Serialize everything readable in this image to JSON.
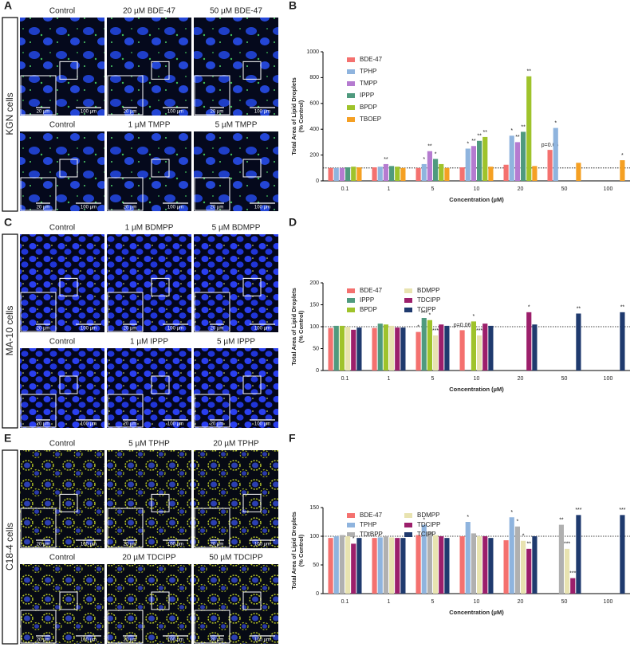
{
  "figure": {
    "panels": [
      {
        "label": "A",
        "cell_line": "KGN cells",
        "rows": [
          [
            "Control",
            "20 µM BDE-47",
            "50 µM BDE-47"
          ],
          [
            "Control",
            "1 µM TMPP",
            "5 µM TMPP"
          ]
        ]
      },
      {
        "label": "C",
        "cell_line": "MA-10 cells",
        "rows": [
          [
            "Control",
            "1 µM BDMPP",
            "5 µM BDMPP"
          ],
          [
            "Control",
            "1 µM IPPP",
            "5 µM IPPP"
          ]
        ]
      },
      {
        "label": "E",
        "cell_line": "C18-4 cells",
        "rows": [
          [
            "Control",
            "5 µM TPHP",
            "20 µM TPHP"
          ],
          [
            "Control",
            "20 µM TDCIPP",
            "50 µM TDCIPP"
          ]
        ]
      }
    ],
    "scale_inset": "20 µm",
    "scale_main": "100 µm"
  },
  "chart_data": [
    {
      "type": "bar",
      "panel": "B",
      "y_label": [
        "Total Area of Lipid Droplets",
        "(% Control)"
      ],
      "x_label": "Concentration (µM)",
      "categories": [
        "0.1",
        "1",
        "5",
        "10",
        "20",
        "50",
        "100"
      ],
      "ylim": [
        0,
        1000
      ],
      "yticks": [
        0,
        200,
        400,
        600,
        800,
        1000
      ],
      "reference": 100,
      "legend_columns": 1,
      "series": [
        {
          "name": "BDE-47",
          "color": "#f4716f",
          "values": [
            100,
            105,
            100,
            105,
            125,
            240,
            null
          ],
          "annotations": [
            null,
            null,
            null,
            null,
            null,
            "p=0.05",
            null
          ]
        },
        {
          "name": "TPHP",
          "color": "#8fb4de",
          "values": [
            100,
            110,
            130,
            250,
            350,
            410,
            null
          ],
          "annotations": [
            null,
            null,
            "*",
            "*",
            "*",
            "*",
            null
          ]
        },
        {
          "name": "TMPP",
          "color": "#b57bd0",
          "values": [
            100,
            130,
            230,
            270,
            300,
            null,
            null
          ],
          "annotations": [
            null,
            "**",
            "**",
            "**",
            "**",
            null,
            null
          ]
        },
        {
          "name": "IPPP",
          "color": "#4f9a7e",
          "values": [
            105,
            115,
            170,
            310,
            380,
            null,
            null
          ],
          "annotations": [
            null,
            null,
            "*",
            "**",
            "**",
            null,
            null
          ]
        },
        {
          "name": "BPDP",
          "color": "#9fc32b",
          "values": [
            110,
            110,
            130,
            340,
            810,
            null,
            null
          ],
          "annotations": [
            null,
            null,
            null,
            "**",
            "**",
            null,
            null
          ]
        },
        {
          "name": "TBOEP",
          "color": "#f5a023",
          "values": [
            105,
            100,
            100,
            110,
            115,
            140,
            160
          ],
          "annotations": [
            null,
            null,
            null,
            null,
            null,
            null,
            "*"
          ]
        }
      ]
    },
    {
      "type": "bar",
      "panel": "D",
      "y_label": [
        "Total Area of Lipid Droplets",
        "(% Control)"
      ],
      "x_label": "Concentration (µM)",
      "categories": [
        "0.1",
        "1",
        "5",
        "10",
        "20",
        "50",
        "100"
      ],
      "ylim": [
        0,
        200
      ],
      "yticks": [
        0,
        50,
        100,
        150,
        200
      ],
      "reference": 100,
      "legend_columns": 2,
      "series": [
        {
          "name": "BDE-47",
          "color": "#f4716f",
          "values": [
            97,
            97,
            88,
            92,
            null,
            null,
            null
          ],
          "annotations": [
            null,
            null,
            "*",
            "p=0.06",
            null,
            null,
            null
          ]
        },
        {
          "name": "IPPP",
          "color": "#4f9a7e",
          "values": [
            102,
            107,
            120,
            null,
            null,
            null,
            null
          ],
          "annotations": [
            null,
            null,
            "***",
            null,
            null,
            null,
            null
          ]
        },
        {
          "name": "BPDP",
          "color": "#9fc32b",
          "values": [
            102,
            105,
            115,
            112,
            null,
            null,
            null
          ],
          "annotations": [
            null,
            null,
            "*",
            "*",
            null,
            null,
            null
          ]
        },
        {
          "name": "BDMPP",
          "color": "#e8e3b0",
          "values": [
            100,
            102,
            80,
            80,
            null,
            null,
            null
          ],
          "annotations": [
            null,
            null,
            "***",
            "***",
            null,
            null,
            null
          ]
        },
        {
          "name": "TDCIPP",
          "color": "#9c1f6b",
          "values": [
            93,
            98,
            105,
            107,
            133,
            null,
            null
          ],
          "annotations": [
            null,
            null,
            null,
            null,
            "*",
            null,
            null
          ]
        },
        {
          "name": "TCIPP",
          "color": "#1f3a6e",
          "values": [
            98,
            98,
            102,
            102,
            105,
            130,
            133
          ],
          "annotations": [
            null,
            null,
            null,
            null,
            null,
            "**",
            "**"
          ]
        }
      ]
    },
    {
      "type": "bar",
      "panel": "F",
      "y_label": [
        "Total Area of Lipid Droplets",
        "(% Control)"
      ],
      "x_label": "Concentration (µM)",
      "categories": [
        "0.1",
        "1",
        "5",
        "10",
        "20",
        "50",
        "100"
      ],
      "ylim": [
        0,
        150
      ],
      "yticks": [
        0,
        50,
        100,
        150
      ],
      "reference": 100,
      "legend_columns": 2,
      "series": [
        {
          "name": "BDE-47",
          "color": "#f4716f",
          "values": [
            97,
            97,
            102,
            100,
            93,
            null,
            null
          ],
          "annotations": [
            null,
            null,
            null,
            null,
            null,
            null,
            null
          ]
        },
        {
          "name": "TPHP",
          "color": "#8fb4de",
          "values": [
            100,
            98,
            120,
            125,
            133,
            null,
            null
          ],
          "annotations": [
            null,
            null,
            "*",
            "*",
            "*",
            null,
            null
          ]
        },
        {
          "name": "TDtBPP",
          "color": "#b0b0b0",
          "values": [
            102,
            100,
            108,
            105,
            117,
            120,
            null
          ],
          "annotations": [
            null,
            null,
            null,
            null,
            "*",
            "**",
            null
          ]
        },
        {
          "name": "BDMPP",
          "color": "#e8e3b0",
          "values": [
            100,
            98,
            102,
            100,
            92,
            78,
            null
          ],
          "annotations": [
            null,
            null,
            null,
            null,
            "*",
            "***",
            null
          ]
        },
        {
          "name": "TDCIPP",
          "color": "#9c1f6b",
          "values": [
            87,
            97,
            100,
            100,
            78,
            27,
            null
          ],
          "annotations": [
            "*",
            null,
            null,
            null,
            "**",
            "***",
            null
          ]
        },
        {
          "name": "TCIPP",
          "color": "#1f3a6e",
          "values": [
            97,
            97,
            97,
            97,
            100,
            137,
            137
          ],
          "annotations": [
            null,
            null,
            null,
            null,
            null,
            "***",
            "***"
          ]
        }
      ]
    }
  ]
}
